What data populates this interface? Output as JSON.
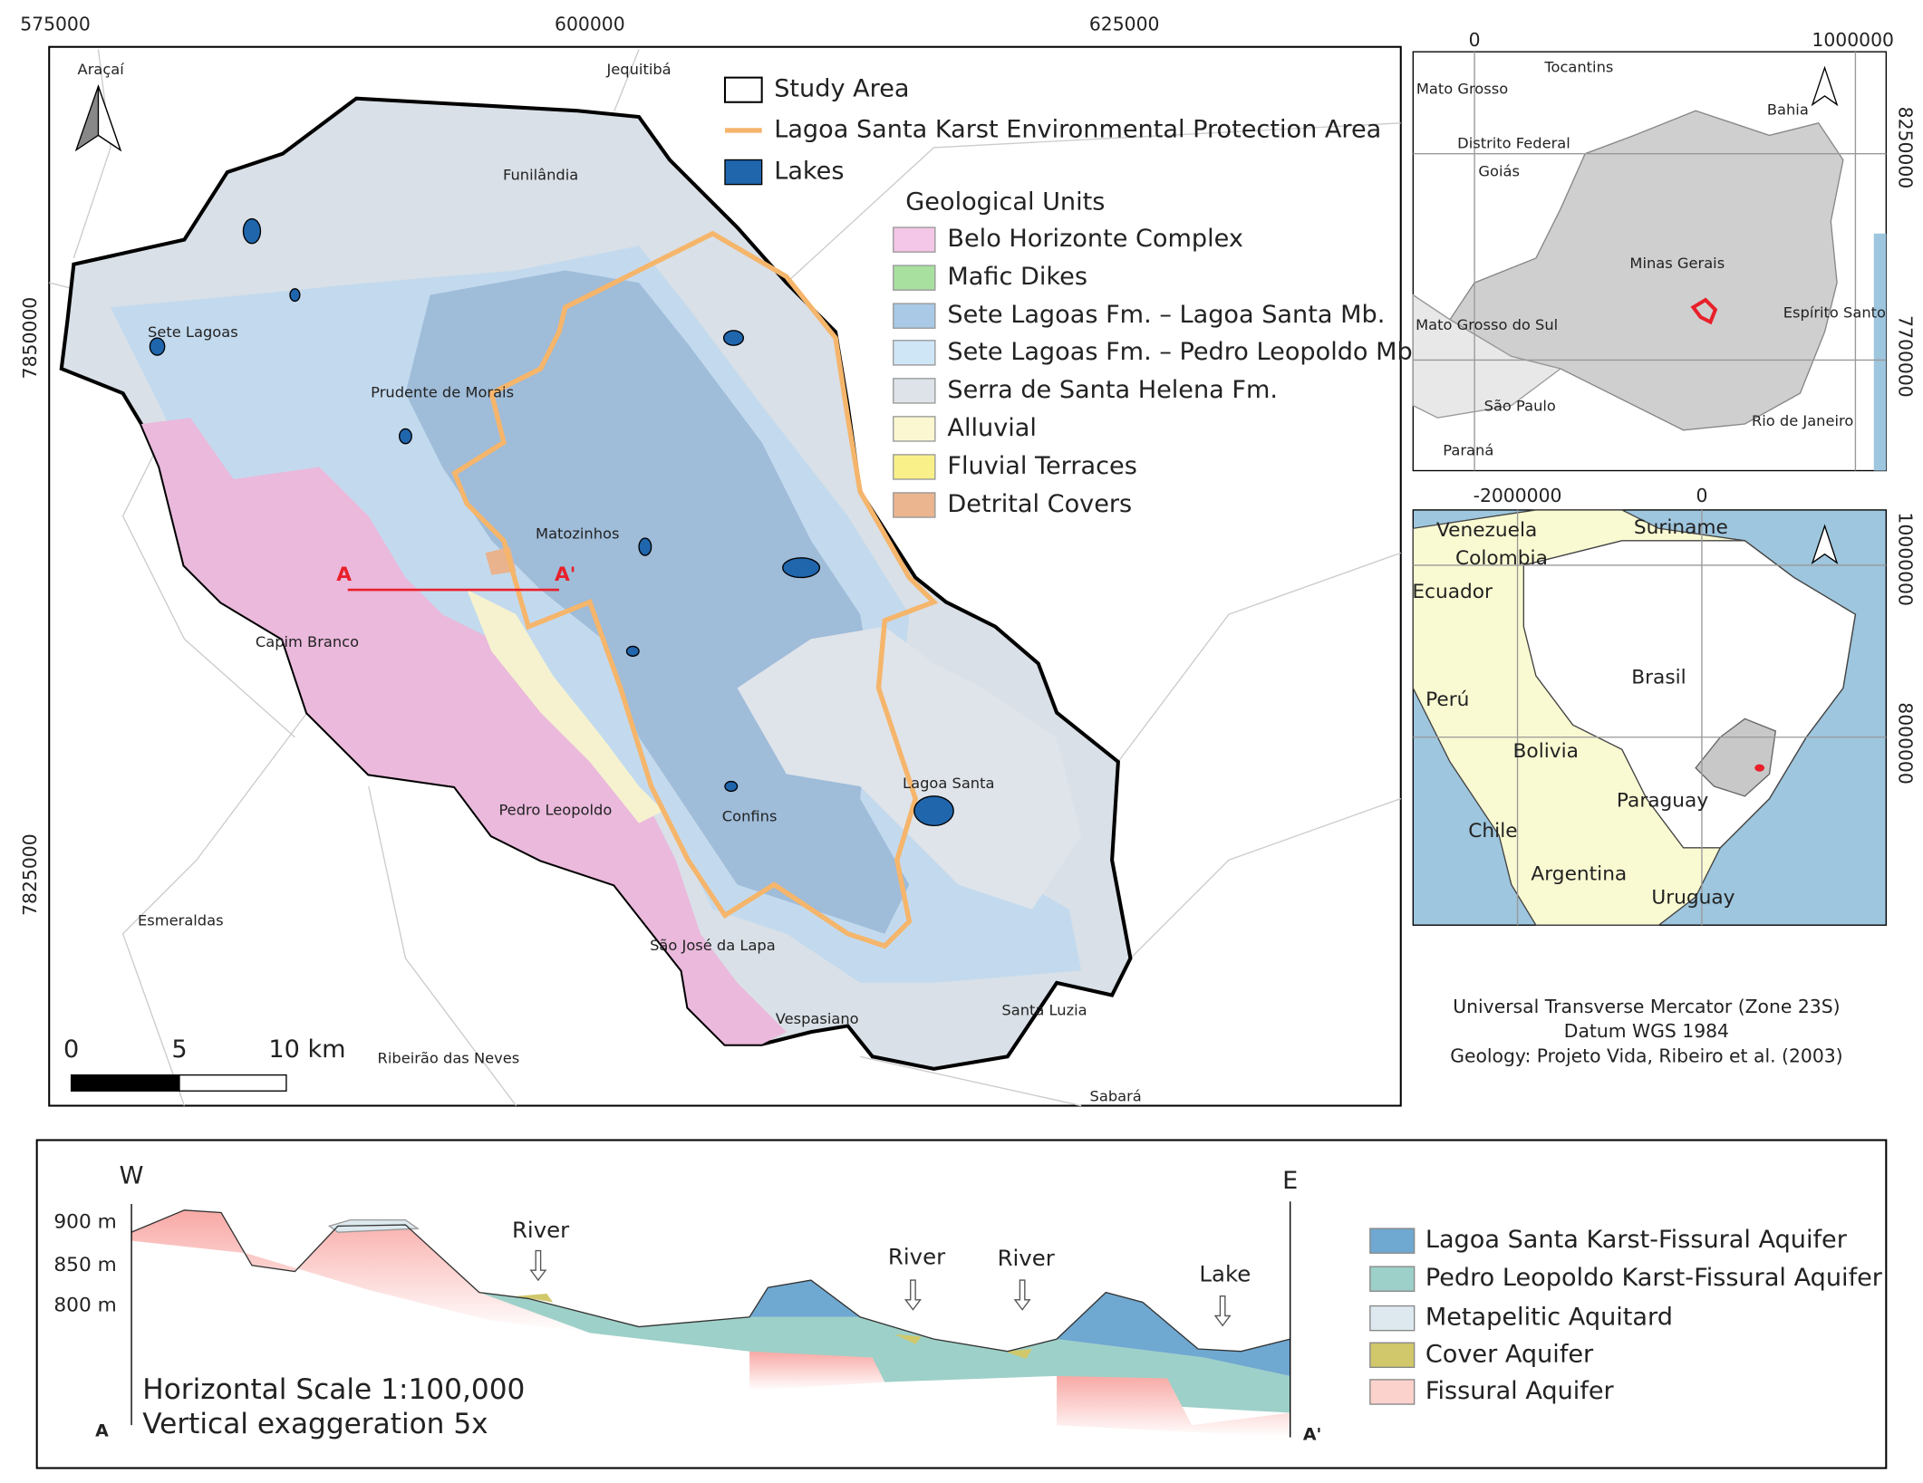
{
  "main_map": {
    "x_labels": [
      "575000",
      "600000",
      "625000"
    ],
    "y_labels": [
      "7850000",
      "7825000"
    ],
    "places": [
      "Araçaí",
      "Jequitibá",
      "Funilândia",
      "Sete Lagoas",
      "Prudente de Morais",
      "Matozinhos",
      "Capim Branco",
      "Pedro Leopoldo",
      "Confins",
      "Lagoa Santa",
      "Esmeraldas",
      "São José da Lapa",
      "Vespasiano",
      "Santa Luzia",
      "Ribeirão das Neves",
      "Sabará"
    ],
    "section_labels": [
      "A",
      "A'"
    ],
    "legend": [
      "Study Area",
      "Lagoa Santa Karst Environmental Protection Area",
      "Lakes"
    ],
    "geology_title": "Geological Units",
    "geology": [
      "Belo Horizonte Complex",
      "Mafic Dikes",
      "Sete Lagoas Fm. – Lagoa Santa Mb.",
      "Sete Lagoas Fm. – Pedro Leopoldo Mb.",
      "Serra de Santa Helena Fm.",
      "Alluvial",
      "Fluvial Terraces",
      "Detrital Covers"
    ],
    "scale_labels": [
      "0",
      "5",
      "10 km"
    ]
  },
  "inset_state": {
    "x_labels": [
      "0",
      "1000000"
    ],
    "y_labels": [
      "8250000",
      "7700000"
    ],
    "places": [
      "Tocantins",
      "Mato Grosso",
      "Bahia",
      "Distrito Federal",
      "Goiás",
      "Minas Gerais",
      "Espírito Santo",
      "Mato Grosso do Sul",
      "São Paulo",
      "Rio de Janeiro",
      "Paraná"
    ]
  },
  "inset_continent": {
    "x_labels": [
      "-2000000",
      "0"
    ],
    "y_labels": [
      "10000000",
      "8000000"
    ],
    "places": [
      "Venezuela",
      "Suriname",
      "Colombia",
      "Ecuador",
      "Brasil",
      "Perú",
      "Bolivia",
      "Paraguay",
      "Chile",
      "Argentina",
      "Uruguay"
    ]
  },
  "credits": [
    "Universal Transverse Mercator (Zone 23S)",
    "Datum WGS 1984",
    "Geology: Projeto Vida, Ribeiro et al. (2003)"
  ],
  "cross_section": {
    "directions": [
      "W",
      "E"
    ],
    "elevations": [
      "900 m",
      "850 m",
      "800 m"
    ],
    "features": [
      "River",
      "River",
      "River",
      "Lake"
    ],
    "ends": [
      "A",
      "A'"
    ],
    "scale_text": [
      "Horizontal Scale 1:100,000",
      "Vertical exaggeration 5x"
    ],
    "legend": [
      "Lagoa Santa Karst-Fissural Aquifer",
      "Pedro Leopoldo Karst-Fissural Aquifer",
      "Metapelitic Aquitard",
      "Cover Aquifer",
      "Fissural Aquifer"
    ]
  }
}
